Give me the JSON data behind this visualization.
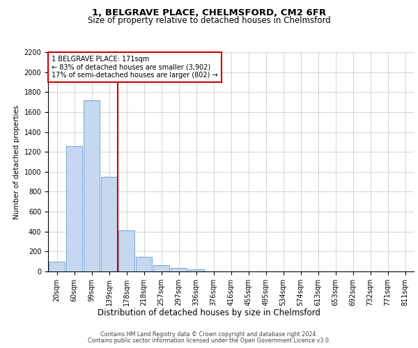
{
  "title_line1": "1, BELGRAVE PLACE, CHELMSFORD, CM2 6FR",
  "title_line2": "Size of property relative to detached houses in Chelmsford",
  "xlabel": "Distribution of detached houses by size in Chelmsford",
  "ylabel": "Number of detached properties",
  "categories": [
    "20sqm",
    "60sqm",
    "99sqm",
    "139sqm",
    "178sqm",
    "218sqm",
    "257sqm",
    "297sqm",
    "336sqm",
    "376sqm",
    "416sqm",
    "455sqm",
    "495sqm",
    "534sqm",
    "574sqm",
    "613sqm",
    "653sqm",
    "692sqm",
    "732sqm",
    "771sqm",
    "811sqm"
  ],
  "values": [
    100,
    1260,
    1720,
    950,
    410,
    148,
    65,
    35,
    22,
    0,
    0,
    0,
    0,
    0,
    0,
    0,
    0,
    0,
    0,
    0,
    0
  ],
  "bar_color": "#c5d8f0",
  "bar_edge_color": "#6699cc",
  "vline_color": "#cc0000",
  "annotation_text": "1 BELGRAVE PLACE: 171sqm\n← 83% of detached houses are smaller (3,902)\n17% of semi-detached houses are larger (802) →",
  "annotation_box_color": "#ffffff",
  "annotation_box_edge_color": "#cc0000",
  "ylim": [
    0,
    2200
  ],
  "yticks": [
    0,
    200,
    400,
    600,
    800,
    1000,
    1200,
    1400,
    1600,
    1800,
    2000,
    2200
  ],
  "footer_line1": "Contains HM Land Registry data © Crown copyright and database right 2024.",
  "footer_line2": "Contains public sector information licensed under the Open Government Licence v3.0.",
  "bg_color": "#ffffff",
  "grid_color": "#cccccc",
  "title1_fontsize": 9.5,
  "title2_fontsize": 8.5,
  "ylabel_fontsize": 7.5,
  "xlabel_fontsize": 8.5,
  "tick_fontsize": 7,
  "ann_fontsize": 7,
  "footer_fontsize": 5.8
}
